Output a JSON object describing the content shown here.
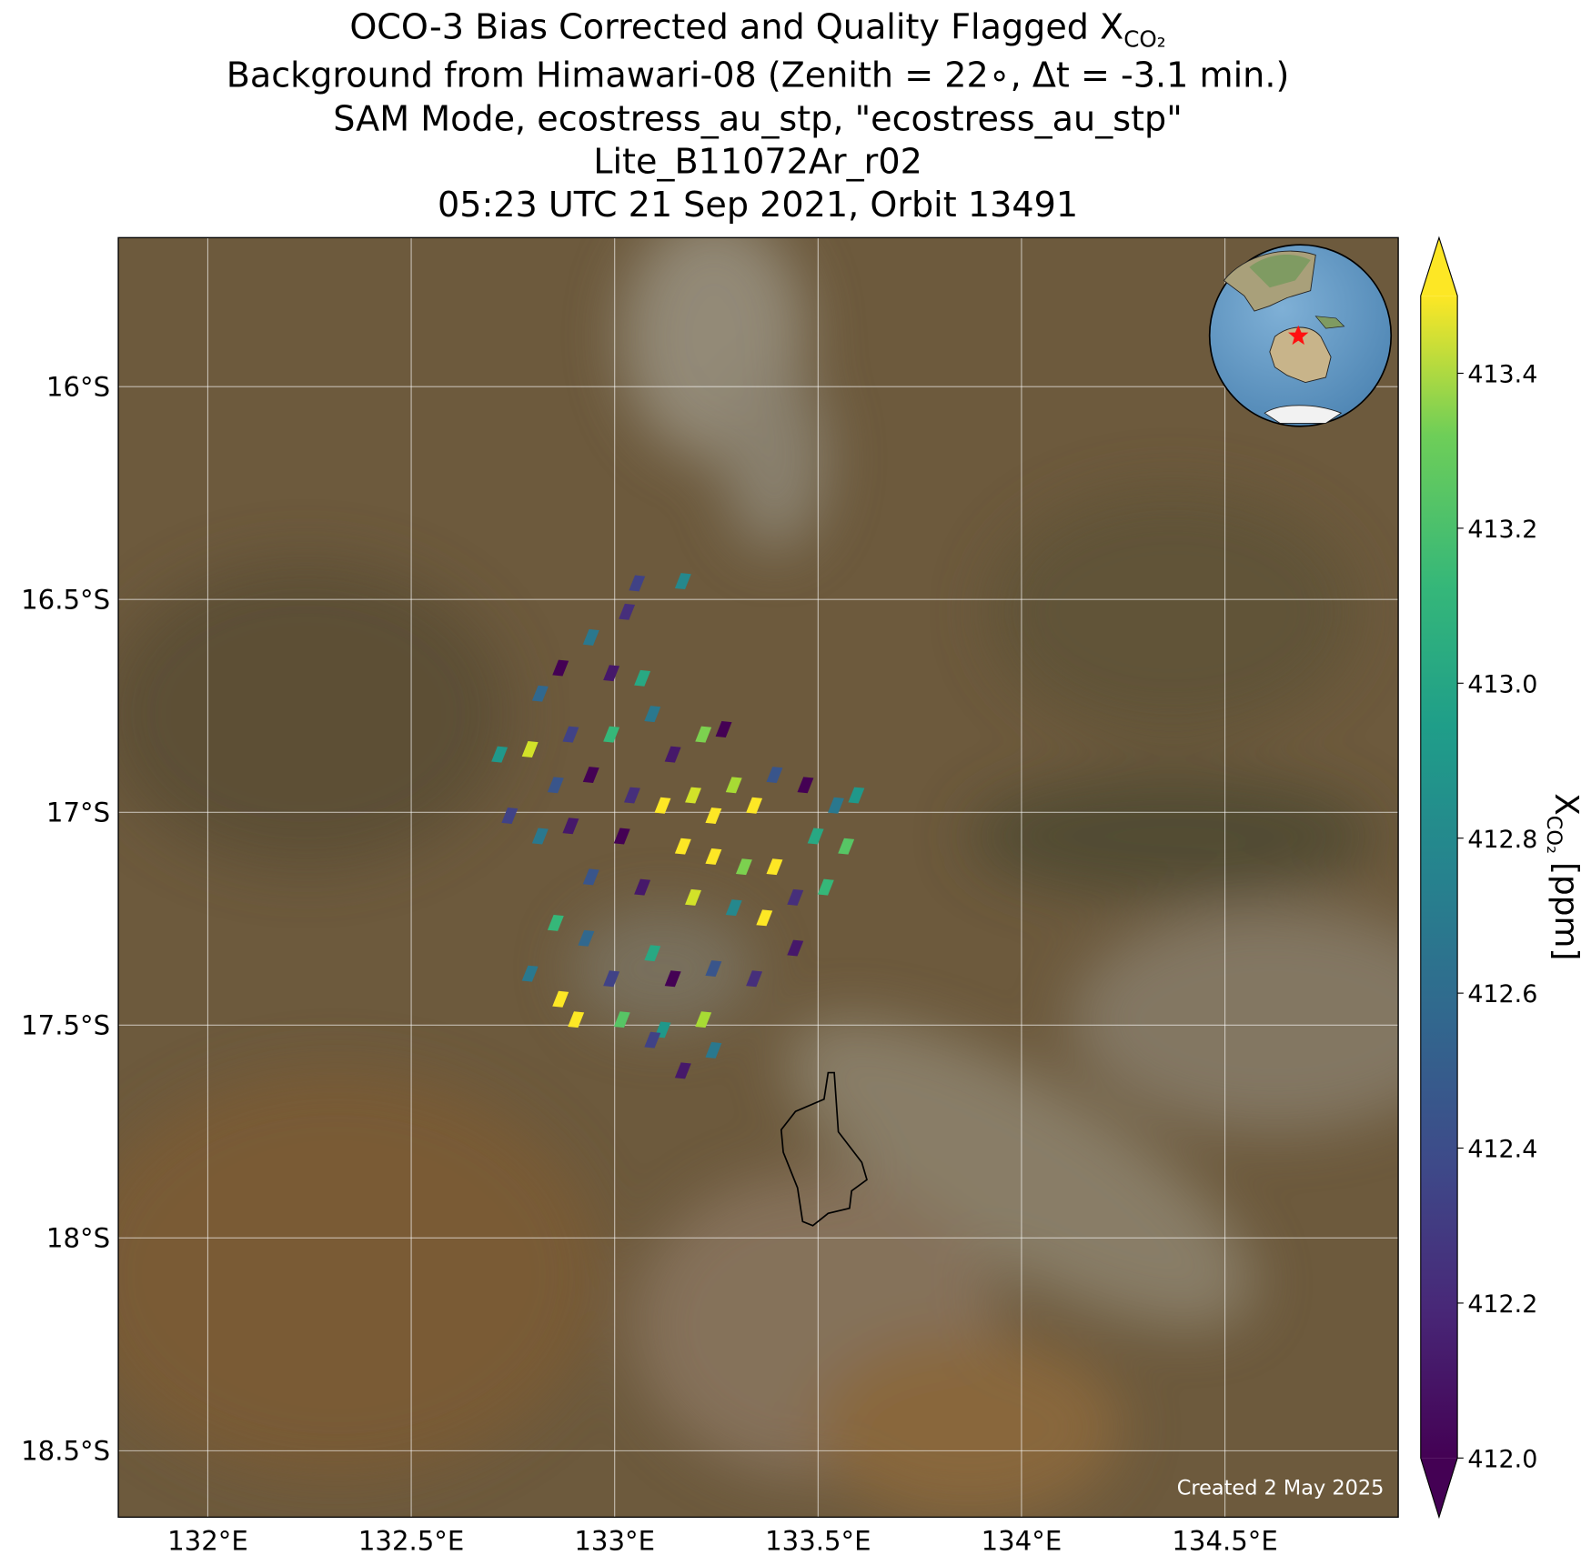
{
  "chart_data": {
    "type": "map-scatter",
    "title": "OCO-3 Bias Corrected and Quality Flagged X",
    "title_subscript": "CO₂",
    "subtitle": [
      "Background from Himawari-08 (Zenith = 22∘, Δt = -3.1 min.)",
      "SAM Mode, ecostress_au_stp, \"ecostress_au_stp\"",
      "Lite_B11072Ar_r02",
      "05:23 UTC 21 Sep 2021, Orbit 13491"
    ],
    "footnote": "Created 2 May 2025",
    "xlim": [
      131.78,
      134.926
    ],
    "ylim": [
      -18.656,
      -15.65
    ],
    "xticks": [
      {
        "value": 132,
        "label": "132°E"
      },
      {
        "value": 132.5,
        "label": "132.5°E"
      },
      {
        "value": 133,
        "label": "133°E"
      },
      {
        "value": 133.5,
        "label": "133.5°E"
      },
      {
        "value": 134,
        "label": "134°E"
      },
      {
        "value": 134.5,
        "label": "134.5°E"
      }
    ],
    "yticks": [
      {
        "value": -16,
        "label": "16°S"
      },
      {
        "value": -16.5,
        "label": "16.5°S"
      },
      {
        "value": -17,
        "label": "17°S"
      },
      {
        "value": -17.5,
        "label": "17.5°S"
      },
      {
        "value": -18,
        "label": "18°S"
      },
      {
        "value": -18.5,
        "label": "18.5°S"
      }
    ],
    "grid": true,
    "colormap": "viridis",
    "clim": [
      412.0,
      413.5
    ],
    "cticks": [
      {
        "value": 412.0,
        "label": "412.0"
      },
      412.2,
      412.4,
      412.6,
      412.8,
      {
        "value": 413.0,
        "label": "413.0"
      },
      413.2,
      413.4
    ],
    "colorbar_label": "X",
    "colorbar_label_subscript": "CO₂",
    "colorbar_label_unit": "[ppm]",
    "lon": [
      133.055,
      133.168,
      133.03,
      132.942,
      132.992,
      133.068,
      132.867,
      132.817,
      132.892,
      132.992,
      133.093,
      133.143,
      133.218,
      133.268,
      132.717,
      132.792,
      132.855,
      132.942,
      133.043,
      133.118,
      133.193,
      133.243,
      133.293,
      133.343,
      133.393,
      133.469,
      133.544,
      133.594,
      132.742,
      132.817,
      132.892,
      133.018,
      133.168,
      133.243,
      133.318,
      133.393,
      133.494,
      133.569,
      132.942,
      133.068,
      133.193,
      133.293,
      133.368,
      133.444,
      133.519,
      132.855,
      132.93,
      133.444,
      132.792,
      132.867,
      132.905,
      132.992,
      133.093,
      133.143,
      133.243,
      133.343,
      133.018,
      133.118,
      133.218,
      133.168,
      133.243,
      133.093
    ],
    "lat": [
      -16.462,
      -16.457,
      -16.529,
      -16.589,
      -16.673,
      -16.685,
      -16.661,
      -16.721,
      -16.817,
      -16.817,
      -16.769,
      -16.864,
      -16.817,
      -16.805,
      -16.864,
      -16.852,
      -16.936,
      -16.912,
      -16.96,
      -16.984,
      -16.96,
      -17.008,
      -16.936,
      -16.984,
      -16.912,
      -16.936,
      -16.984,
      -16.96,
      -17.008,
      -17.056,
      -17.032,
      -17.056,
      -17.08,
      -17.104,
      -17.128,
      -17.128,
      -17.056,
      -17.08,
      -17.152,
      -17.176,
      -17.2,
      -17.224,
      -17.248,
      -17.2,
      -17.176,
      -17.26,
      -17.296,
      -17.319,
      -17.379,
      -17.439,
      -17.487,
      -17.391,
      -17.331,
      -17.391,
      -17.367,
      -17.391,
      -17.487,
      -17.511,
      -17.487,
      -17.607,
      -17.559,
      -17.535
    ],
    "xco2": [
      412.3,
      412.7,
      412.2,
      412.6,
      412.1,
      412.9,
      412.0,
      412.5,
      412.3,
      413.0,
      412.6,
      412.1,
      413.2,
      412.0,
      412.8,
      413.4,
      412.4,
      412.0,
      412.2,
      413.5,
      413.4,
      413.5,
      413.3,
      413.5,
      412.4,
      412.0,
      412.6,
      412.8,
      412.3,
      412.6,
      412.1,
      412.0,
      413.5,
      413.5,
      413.2,
      413.5,
      412.9,
      413.1,
      412.4,
      412.1,
      413.4,
      412.7,
      413.5,
      412.2,
      413.0,
      413.0,
      412.5,
      412.1,
      412.6,
      413.5,
      413.5,
      412.3,
      412.9,
      412.0,
      412.4,
      412.2,
      413.1,
      412.8,
      413.3,
      412.1,
      412.6,
      412.3
    ]
  }
}
